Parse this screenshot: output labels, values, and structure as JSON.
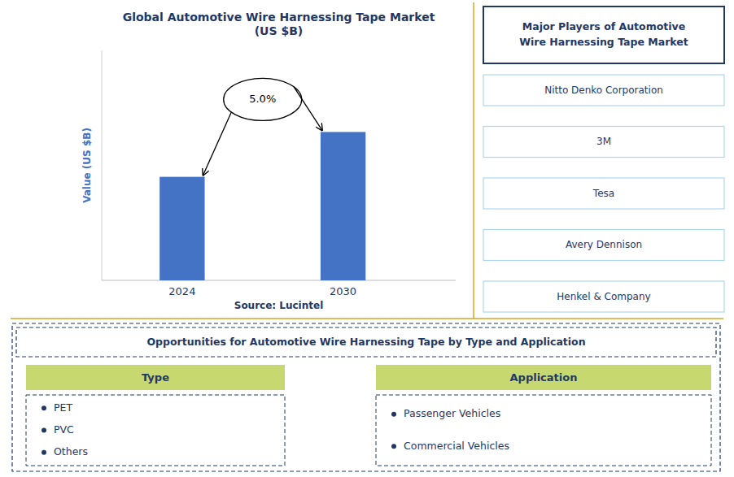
{
  "chart_data": {
    "type": "bar",
    "title": "Global Automotive Wire Harnessing Tape Market\n(US $B)",
    "categories": [
      "2024",
      "2030"
    ],
    "values": [
      3.0,
      4.3
    ],
    "color": "#4472C4",
    "ylabel": "Value (US $B)",
    "ylim": [
      0,
      6.665
    ],
    "tick_labels": "x",
    "grid": false,
    "annotations": [
      "5.0%",
      "Source: Lucintel"
    ],
    "players_title": "Major Players of Automotive\nWire Harnessing Tape Market",
    "players": [
      "Nitto Denko Corporation",
      "3M",
      "Tesa",
      "Avery Dennison",
      "Henkel & Company"
    ],
    "opportunities_title": "Opportunities for Automotive Wire Harnessing Tape by Type and Application",
    "type_header": "Type",
    "type_items": [
      "PET",
      "PVC",
      "Others"
    ],
    "application_header": "Application",
    "application_items": [
      "Passenger Vehicles",
      "Commercial Vehicles"
    ]
  }
}
